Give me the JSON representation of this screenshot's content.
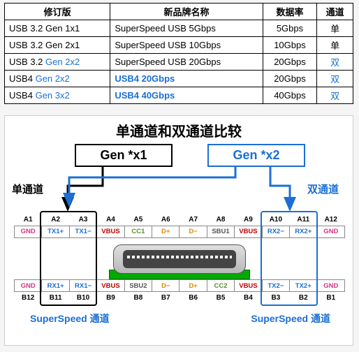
{
  "table": {
    "headers": [
      "修订版",
      "新品牌名称",
      "数据率",
      "通道"
    ],
    "rows": [
      {
        "rev": "USB 3.2 Gen 1x1",
        "rev_hl": "",
        "name": "SuperSpeed USB 5Gbps",
        "name_hl": false,
        "rate": "5Gbps",
        "lane": "单",
        "lane_hl": false
      },
      {
        "rev": "USB 3.2 Gen 2x1",
        "rev_hl": "",
        "name": "SuperSpeed USB 10Gbps",
        "name_hl": false,
        "rate": "10Gbps",
        "lane": "单",
        "lane_hl": false
      },
      {
        "rev": "USB 3.2 ",
        "rev_hl": "Gen 2x2",
        "name": "SuperSpeed USB 20Gbps",
        "name_hl": false,
        "rate": "20Gbps",
        "lane": "双",
        "lane_hl": true
      },
      {
        "rev": "USB4 ",
        "rev_hl": "Gen 2x2",
        "name": "USB4 20Gbps",
        "name_hl": true,
        "rate": "20Gbps",
        "lane": "双",
        "lane_hl": true
      },
      {
        "rev": "USB4 ",
        "rev_hl": "Gen 3x2",
        "name": "USB4 40Gbps",
        "name_hl": true,
        "rate": "40Gbps",
        "lane": "双",
        "lane_hl": true
      }
    ]
  },
  "diagram": {
    "title": "单通道和双通道比较",
    "gen1_label": "Gen *x1",
    "gen2_label": "Gen *x2",
    "single_lane": "单通道",
    "dual_lane": "双通道",
    "ss_channel": "SuperSpeed 通道",
    "colors": {
      "highlight": "#1b6fd4",
      "black": "#000000",
      "gnd": "#d63384",
      "vbus": "#c00000",
      "cc": "#5a8f2e",
      "data": "#d98c00",
      "pcb": "#00aa00"
    },
    "top_pins_labels": [
      "A1",
      "A2",
      "A3",
      "A4",
      "A5",
      "A6",
      "A7",
      "A8",
      "A9",
      "A10",
      "A11",
      "A12"
    ],
    "top_pins": [
      {
        "t": "GND",
        "c": "c-gnd"
      },
      {
        "t": "TX1+",
        "c": "c-tx"
      },
      {
        "t": "TX1−",
        "c": "c-tx"
      },
      {
        "t": "VBUS",
        "c": "c-vbus"
      },
      {
        "t": "CC1",
        "c": "c-cc"
      },
      {
        "t": "D+",
        "c": "c-dp"
      },
      {
        "t": "D−",
        "c": "c-dm"
      },
      {
        "t": "SBU1",
        "c": "c-sbu"
      },
      {
        "t": "VBUS",
        "c": "c-vbus"
      },
      {
        "t": "RX2−",
        "c": "c-rx"
      },
      {
        "t": "RX2+",
        "c": "c-rx"
      },
      {
        "t": "GND",
        "c": "c-gnd"
      }
    ],
    "bot_pins_labels": [
      "B12",
      "B11",
      "B10",
      "B9",
      "B8",
      "B7",
      "B6",
      "B5",
      "B4",
      "B3",
      "B2",
      "B1"
    ],
    "bot_pins": [
      {
        "t": "GND",
        "c": "c-gnd"
      },
      {
        "t": "RX1+",
        "c": "c-rx"
      },
      {
        "t": "RX1−",
        "c": "c-rx"
      },
      {
        "t": "VBUS",
        "c": "c-vbus"
      },
      {
        "t": "SBU2",
        "c": "c-sbu"
      },
      {
        "t": "D−",
        "c": "c-dm"
      },
      {
        "t": "D+",
        "c": "c-dp"
      },
      {
        "t": "CC2",
        "c": "c-cc"
      },
      {
        "t": "VBUS",
        "c": "c-vbus"
      },
      {
        "t": "TX2−",
        "c": "c-tx"
      },
      {
        "t": "TX2+",
        "c": "c-tx"
      },
      {
        "t": "GND",
        "c": "c-gnd"
      }
    ]
  }
}
